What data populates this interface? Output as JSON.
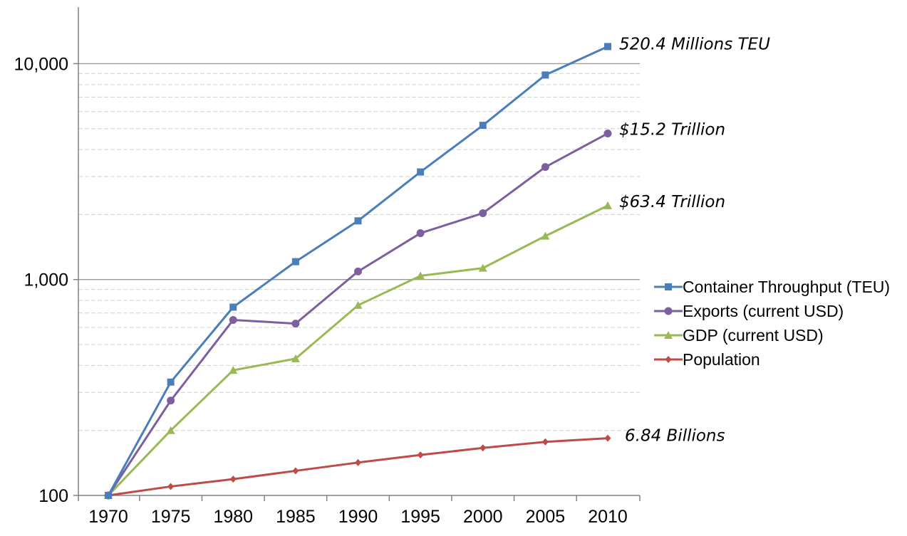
{
  "chart_data": {
    "type": "line",
    "y_scale": "log",
    "ylim": [
      100,
      18000
    ],
    "x": [
      "1970",
      "1975",
      "1980",
      "1985",
      "1990",
      "1995",
      "2000",
      "2005",
      "2010"
    ],
    "y_ticks": [
      "100",
      "1,000",
      "10,000"
    ],
    "grid": "horizontal major and minor gridlines",
    "legend_position": "right",
    "series": [
      {
        "name": "Container Throughput (TEU)",
        "color": "#4a7ebb",
        "marker": "square",
        "values": [
          100,
          335,
          745,
          1210,
          1870,
          3150,
          5180,
          8860,
          12000
        ]
      },
      {
        "name": "Exports (current USD)",
        "color": "#7d5fa0",
        "marker": "circle",
        "values": [
          100,
          275,
          650,
          625,
          1090,
          1640,
          2030,
          3320,
          4750
        ]
      },
      {
        "name": "GDP (current USD)",
        "color": "#98b954",
        "marker": "triangle",
        "values": [
          100,
          200,
          380,
          430,
          760,
          1040,
          1130,
          1590,
          2200
        ]
      },
      {
        "name": "Population",
        "color": "#be4b48",
        "marker": "diamond",
        "values": [
          100,
          110,
          119,
          130,
          142,
          154,
          166,
          177,
          184
        ]
      }
    ],
    "annotations": [
      {
        "text": "520.4 Millions TEU",
        "series": "Container Throughput (TEU)"
      },
      {
        "text": "$15.2 Trillion",
        "series": "Exports (current USD)"
      },
      {
        "text": "$63.4 Trillion",
        "series": "GDP (current USD)"
      },
      {
        "text": "6.84 Billions",
        "series": "Population"
      }
    ]
  }
}
